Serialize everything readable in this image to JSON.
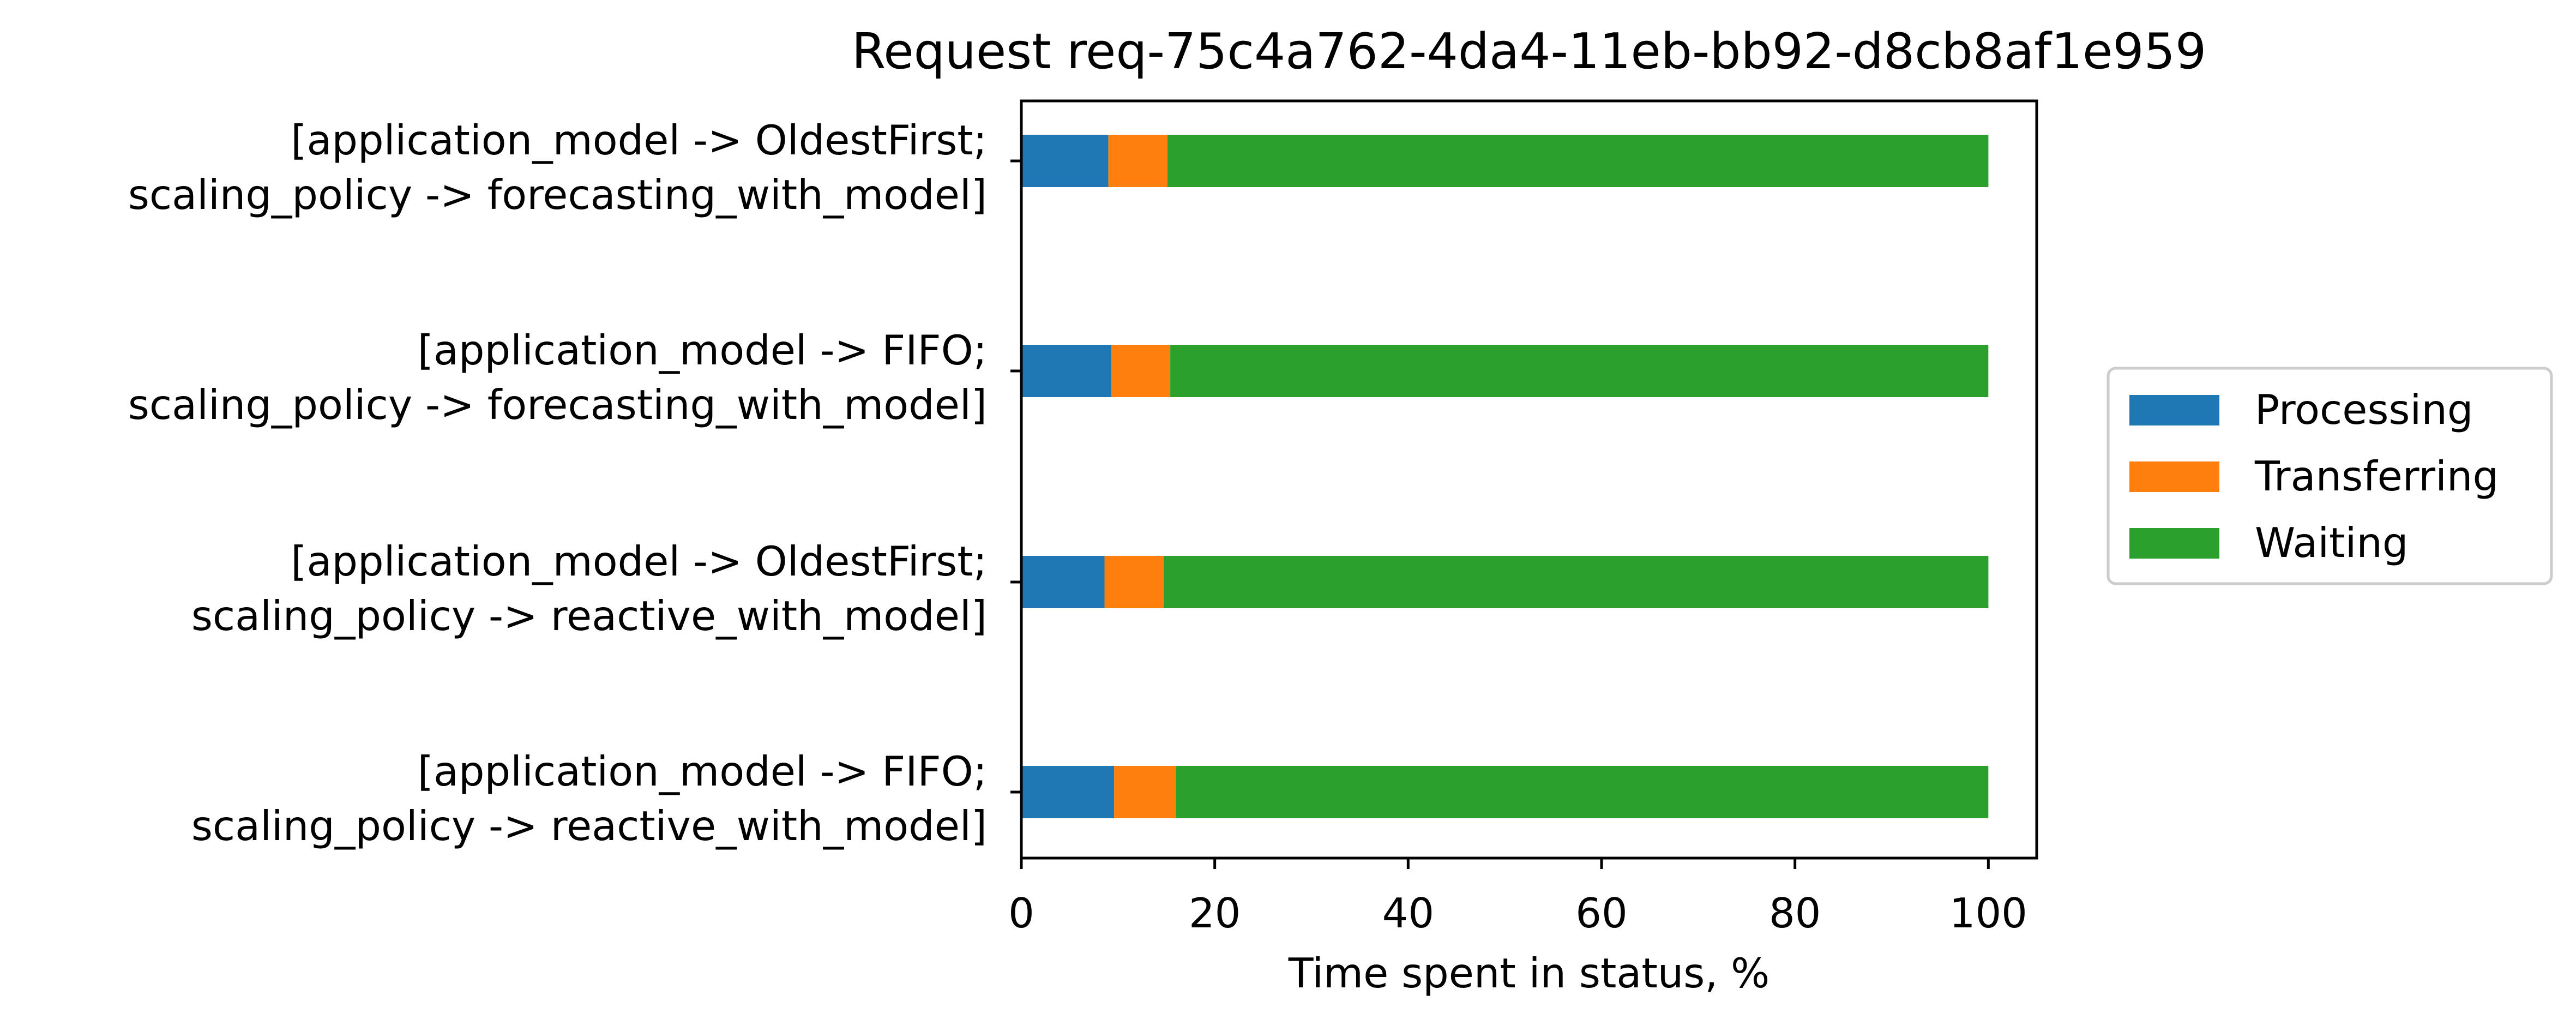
{
  "chart_data": {
    "type": "bar",
    "orientation": "horizontal",
    "stacked": true,
    "title": "Request req-75c4a762-4da4-11eb-bb92-d8cb8af1e959",
    "xlabel": "Time spent in status, %",
    "ylabel": "",
    "xlim": [
      0,
      105
    ],
    "x_ticks": [
      "0",
      "20",
      "40",
      "60",
      "80",
      "100"
    ],
    "grid": false,
    "legend_position": "right",
    "categories": [
      {
        "line1": "[application_model -> OldestFirst;",
        "line2": "scaling_policy -> forecasting_with_model]"
      },
      {
        "line1": "[application_model -> FIFO;",
        "line2": "scaling_policy -> forecasting_with_model]"
      },
      {
        "line1": "[application_model -> OldestFirst;",
        "line2": "scaling_policy -> reactive_with_model]"
      },
      {
        "line1": "[application_model -> FIFO;",
        "line2": "scaling_policy -> reactive_with_model]"
      }
    ],
    "series": [
      {
        "name": "Processing",
        "color": "#1f77b4",
        "values": [
          9.0,
          9.3,
          8.6,
          9.6
        ]
      },
      {
        "name": "Transferring",
        "color": "#ff7f0e",
        "values": [
          6.1,
          6.1,
          6.1,
          6.4
        ]
      },
      {
        "name": "Waiting",
        "color": "#2ca02c",
        "values": [
          84.9,
          84.6,
          85.3,
          84.0
        ]
      }
    ]
  }
}
